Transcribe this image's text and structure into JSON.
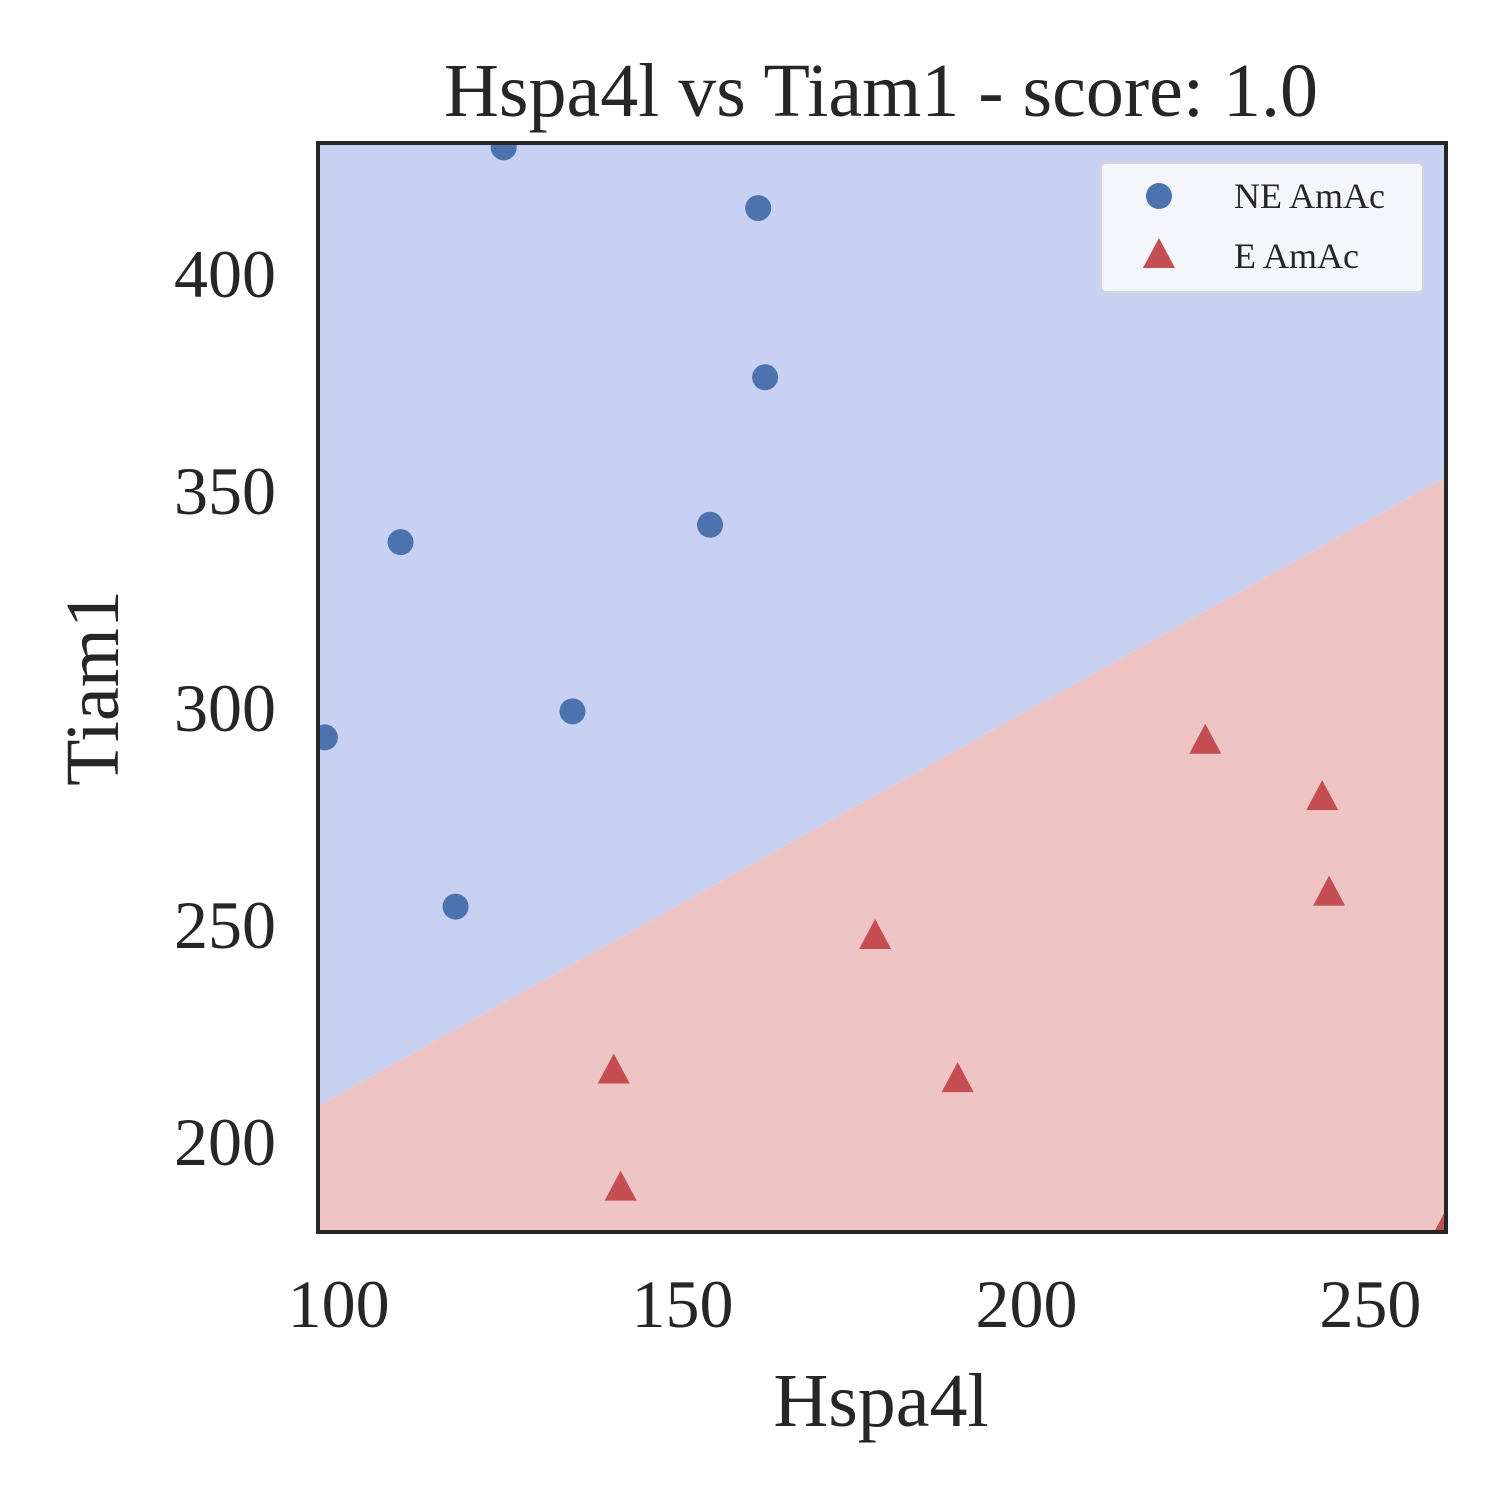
{
  "chart_data": {
    "type": "scatter",
    "title": "Hspa4l vs Tiam1 - score: 1.0",
    "xlabel": "Hspa4l",
    "ylabel": "Tiam1",
    "xlim": [
      97,
      261
    ],
    "ylim": [
      179,
      430
    ],
    "xticks": [
      100,
      150,
      200,
      250
    ],
    "yticks": [
      200,
      250,
      300,
      350,
      400
    ],
    "grid": false,
    "legend_position": "top-right",
    "decision_boundary": {
      "points": [
        [
          97,
          208
        ],
        [
          261,
          353
        ]
      ],
      "above_class": "NE AmAc",
      "below_class": "E AmAc"
    },
    "series": [
      {
        "name": "NE AmAc",
        "marker": "circle",
        "color": "#4c72b0",
        "region_color": "#c9d1f2",
        "points": [
          [
            98,
            293
          ],
          [
            109,
            338
          ],
          [
            117,
            254
          ],
          [
            124,
            429
          ],
          [
            134,
            299
          ],
          [
            154,
            342
          ],
          [
            161,
            415
          ],
          [
            162,
            376
          ]
        ]
      },
      {
        "name": "E AmAc",
        "marker": "triangle",
        "color": "#c44e52",
        "region_color": "#efc4c4",
        "points": [
          [
            140,
            216
          ],
          [
            141,
            189
          ],
          [
            178,
            247
          ],
          [
            190,
            214
          ],
          [
            226,
            292
          ],
          [
            243,
            279
          ],
          [
            244,
            257
          ],
          [
            261,
            180
          ]
        ]
      }
    ]
  }
}
